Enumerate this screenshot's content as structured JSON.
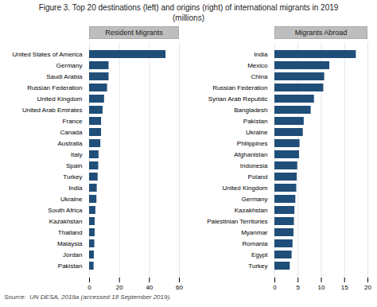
{
  "title": "Figure 3. Top 20 destinations (left) and origins (right) of international migrants in 2019\n(millions)",
  "source": "Source:  UN DESA, 2019a (accessed 18 September 2019).",
  "chart_data": [
    {
      "type": "bar",
      "orientation": "horizontal",
      "title": "Resident Migrants",
      "categories": [
        "United States of America",
        "Germany",
        "Saudi Arabia",
        "Russian Federation",
        "United Kingdom",
        "United Arab Emirates",
        "France",
        "Canada",
        "Australia",
        "Italy",
        "Spain",
        "Turkey",
        "India",
        "Ukraine",
        "South Africa",
        "Kazakhstan",
        "Thailand",
        "Malaysia",
        "Jordan",
        "Pakistan"
      ],
      "values": [
        51,
        13,
        13,
        12,
        10,
        9,
        8,
        8,
        7.5,
        6.3,
        6.1,
        5.7,
        5.1,
        4.9,
        4.2,
        3.7,
        3.7,
        3.5,
        3.2,
        3.0
      ],
      "color": "#1F4E79",
      "xlim": [
        0,
        60
      ],
      "xticks": [
        0,
        20,
        40,
        60
      ],
      "grid": true
    },
    {
      "type": "bar",
      "orientation": "horizontal",
      "title": "Migrants Abroad",
      "categories": [
        "India",
        "Mexico",
        "China",
        "Russian Federation",
        "Syrian Arab Republic",
        "Bangladesh",
        "Pakistan",
        "Ukraine",
        "Philippines",
        "Afghanistan",
        "Indonesia",
        "Poland",
        "United Kingdom",
        "Germany",
        "Kazakhstan",
        "Palestinian Territories",
        "Myanmar",
        "Romania",
        "Egypt",
        "Turkey"
      ],
      "values": [
        17.5,
        11.8,
        10.7,
        10.5,
        8.5,
        7.8,
        6.3,
        6.1,
        5.4,
        5.3,
        4.9,
        4.8,
        4.7,
        4.5,
        4.3,
        4.2,
        4.1,
        3.9,
        3.7,
        3.3
      ],
      "color": "#1F4E79",
      "xlim": [
        0,
        20
      ],
      "xticks": [
        0,
        5,
        10,
        15,
        20
      ],
      "grid": true
    }
  ]
}
